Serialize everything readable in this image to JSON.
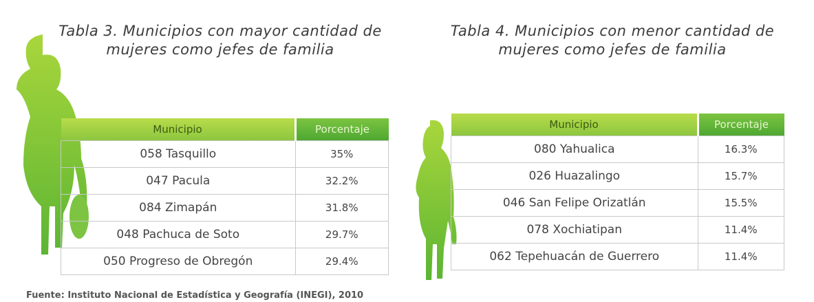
{
  "table3": {
    "title": "Tabla 3. Municipios con mayor cantidad de mujeres como jefes de familia",
    "header": [
      "Municipio",
      "Porcentaje"
    ],
    "rows": [
      [
        "058 Tasquillo",
        "35%"
      ],
      [
        "047 Pacula",
        "32.2%"
      ],
      [
        "084 Zimapán",
        "31.8%"
      ],
      [
        "048 Pachuca de Soto",
        "29.7%"
      ],
      [
        "050 Progreso de Obregón",
        "29.4%"
      ]
    ]
  },
  "table4": {
    "title": "Tabla 4. Municipios con menor cantidad de mujeres como jefes de familia",
    "header": [
      "Municipio",
      "Porcentaje"
    ],
    "rows": [
      [
        "080 Yahualica",
        "16.3%"
      ],
      [
        "026 Huazalingo",
        "15.7%"
      ],
      [
        "046 San Felipe Orizatlán",
        "15.5%"
      ],
      [
        "078 Xochiatipan",
        "11.4%"
      ],
      [
        "062 Tepehuacán de Guerrero",
        "11.4%"
      ]
    ]
  },
  "source": "Fuente: Instituto Nacional de Estadística y Geografía (INEGI), 2010"
}
